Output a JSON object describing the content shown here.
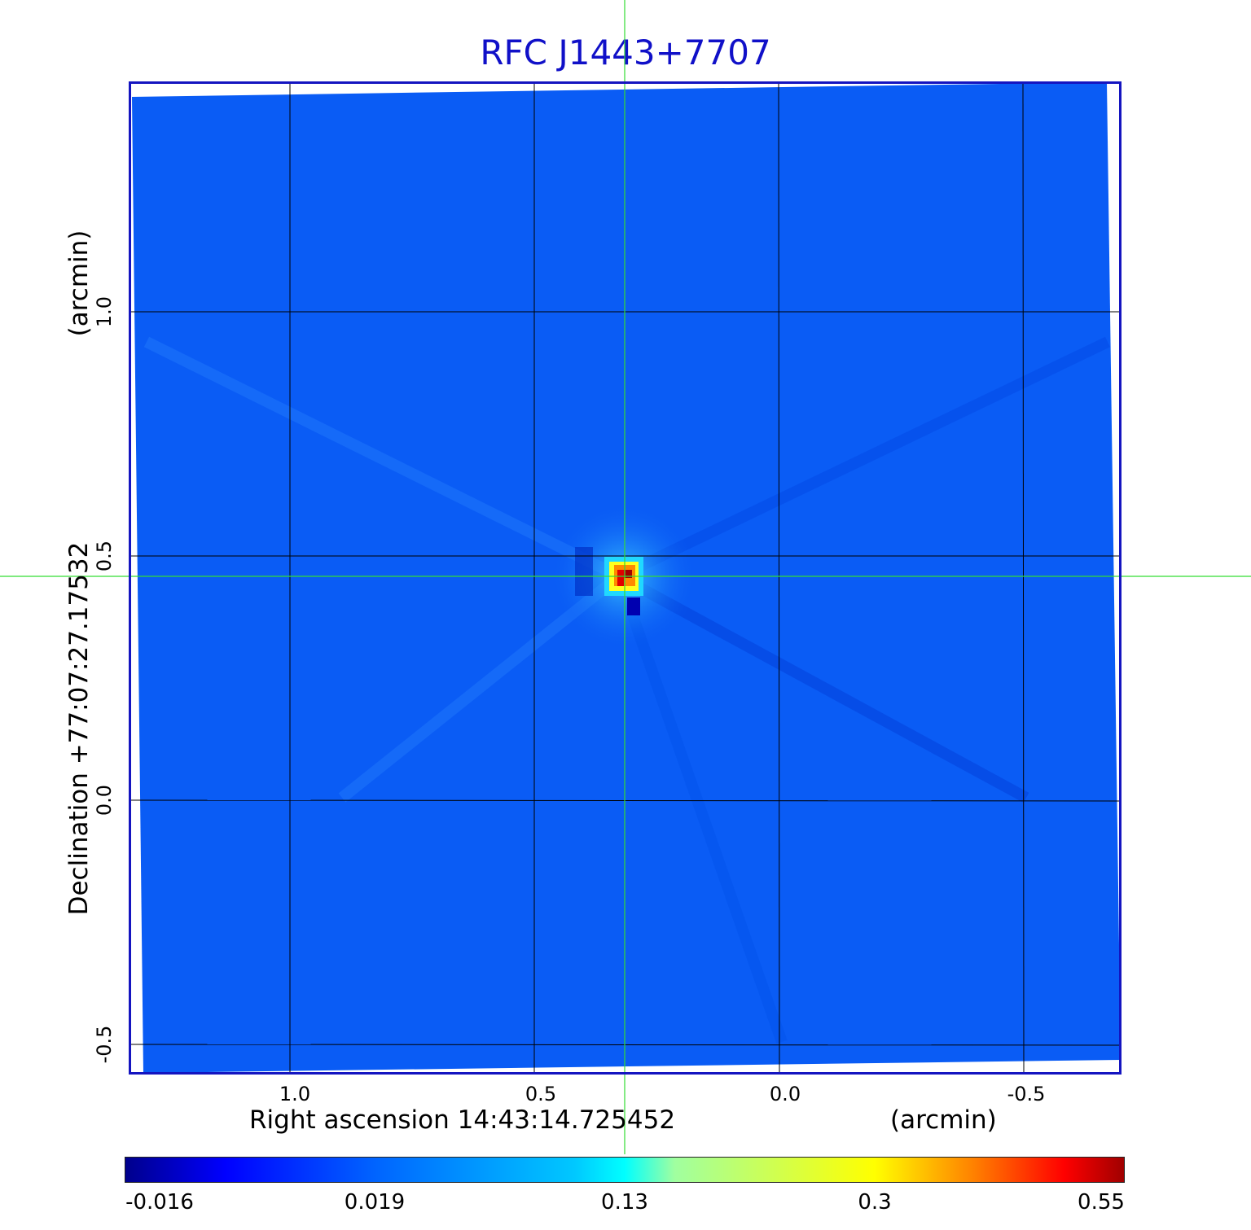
{
  "title": "RFC J1443+7707",
  "axes": {
    "x_label": "Right ascension  14:43:14.725452",
    "x_unit": "(arcmin)",
    "y_label": "Declination  +77:07:27.17532",
    "y_unit": "(arcmin)",
    "x_ticks": [
      "1.0",
      "0.5",
      "0.0",
      "-0.5"
    ],
    "y_ticks": [
      "1.0",
      "0.5",
      "0.0",
      "-0.5"
    ]
  },
  "colorbar": {
    "labels": [
      "-0.016",
      "0.019",
      "0.13",
      "0.3",
      "0.55"
    ],
    "colormap": "jet"
  },
  "colors": {
    "title": "#1010c8",
    "frame": "#1414c0",
    "background_field": "#0a5cf5",
    "crosshair": "#33dd33"
  }
}
